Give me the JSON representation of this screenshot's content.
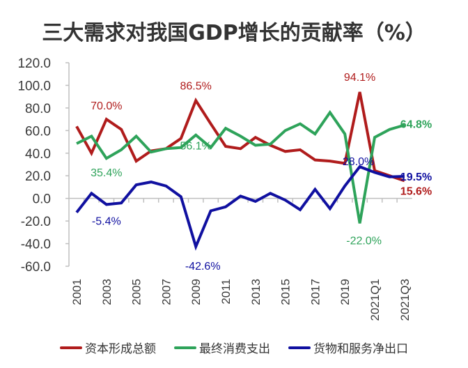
{
  "chart_data": {
    "type": "line",
    "title": "三大需求对我国GDP增长的贡献率（%）",
    "xlabel": "",
    "ylabel": "",
    "ylim": [
      -60,
      120
    ],
    "yticks": [
      "120.0",
      "100.0",
      "80.0",
      "60.0",
      "40.0",
      "20.0",
      "0.0",
      "-20.0",
      "-40.0",
      "-60.0"
    ],
    "ytick_values": [
      120,
      100,
      80,
      60,
      40,
      20,
      0,
      -20,
      -40,
      -60
    ],
    "categories": [
      "2001",
      "2002",
      "2003",
      "2004",
      "2005",
      "2006",
      "2007",
      "2008",
      "2009",
      "2010",
      "2011",
      "2012",
      "2013",
      "2014",
      "2015",
      "2016",
      "2017",
      "2018",
      "2019",
      "2020",
      "2021Q1",
      "2021Q2",
      "2021Q3"
    ],
    "xtick_labels": [
      "2001",
      "2003",
      "2005",
      "2007",
      "2009",
      "2011",
      "2013",
      "2015",
      "2017",
      "2019",
      "2021Q1",
      "2021Q3"
    ],
    "legend_position": "bottom",
    "grid": false,
    "series": [
      {
        "name": "资本形成总额",
        "color": "#b01c1c",
        "values": [
          63.7,
          40,
          70.0,
          61,
          33,
          42,
          44,
          53,
          86.5,
          66,
          46,
          44,
          54,
          47,
          41.5,
          43,
          34,
          33,
          31,
          94.1,
          24.5,
          20,
          15.6
        ]
      },
      {
        "name": "最终消费支出",
        "color": "#2ea35a",
        "values": [
          48.5,
          55,
          35.4,
          43,
          55,
          41,
          44,
          45,
          56.1,
          45,
          62,
          55,
          47,
          48,
          60,
          66,
          57,
          76,
          57,
          -22.0,
          54,
          61,
          64.8
        ]
      },
      {
        "name": "货物和服务净出口",
        "color": "#1010a0",
        "values": [
          -12.4,
          4.5,
          -5.4,
          -4,
          12,
          14.5,
          11,
          1.5,
          -42.6,
          -11,
          -7.5,
          2,
          -2.6,
          4.5,
          -1.5,
          -10,
          8,
          -9,
          11,
          28.0,
          23,
          19,
          19.5
        ]
      }
    ],
    "annotations": [
      {
        "series": 0,
        "index": 2,
        "text": "70.0%"
      },
      {
        "series": 0,
        "index": 8,
        "text": "86.5%"
      },
      {
        "series": 0,
        "index": 19,
        "text": "94.1%"
      },
      {
        "series": 0,
        "index": 22,
        "text": "15.6%"
      },
      {
        "series": 1,
        "index": 2,
        "text": "35.4%"
      },
      {
        "series": 1,
        "index": 8,
        "text": "56.1%"
      },
      {
        "series": 1,
        "index": 19,
        "text": "-22.0%"
      },
      {
        "series": 1,
        "index": 22,
        "text": "64.8%"
      },
      {
        "series": 2,
        "index": 2,
        "text": "-5.4%"
      },
      {
        "series": 2,
        "index": 8,
        "text": "-42.6%"
      },
      {
        "series": 2,
        "index": 19,
        "text": "28.0%"
      },
      {
        "series": 2,
        "index": 22,
        "text": "19.5%"
      }
    ]
  }
}
